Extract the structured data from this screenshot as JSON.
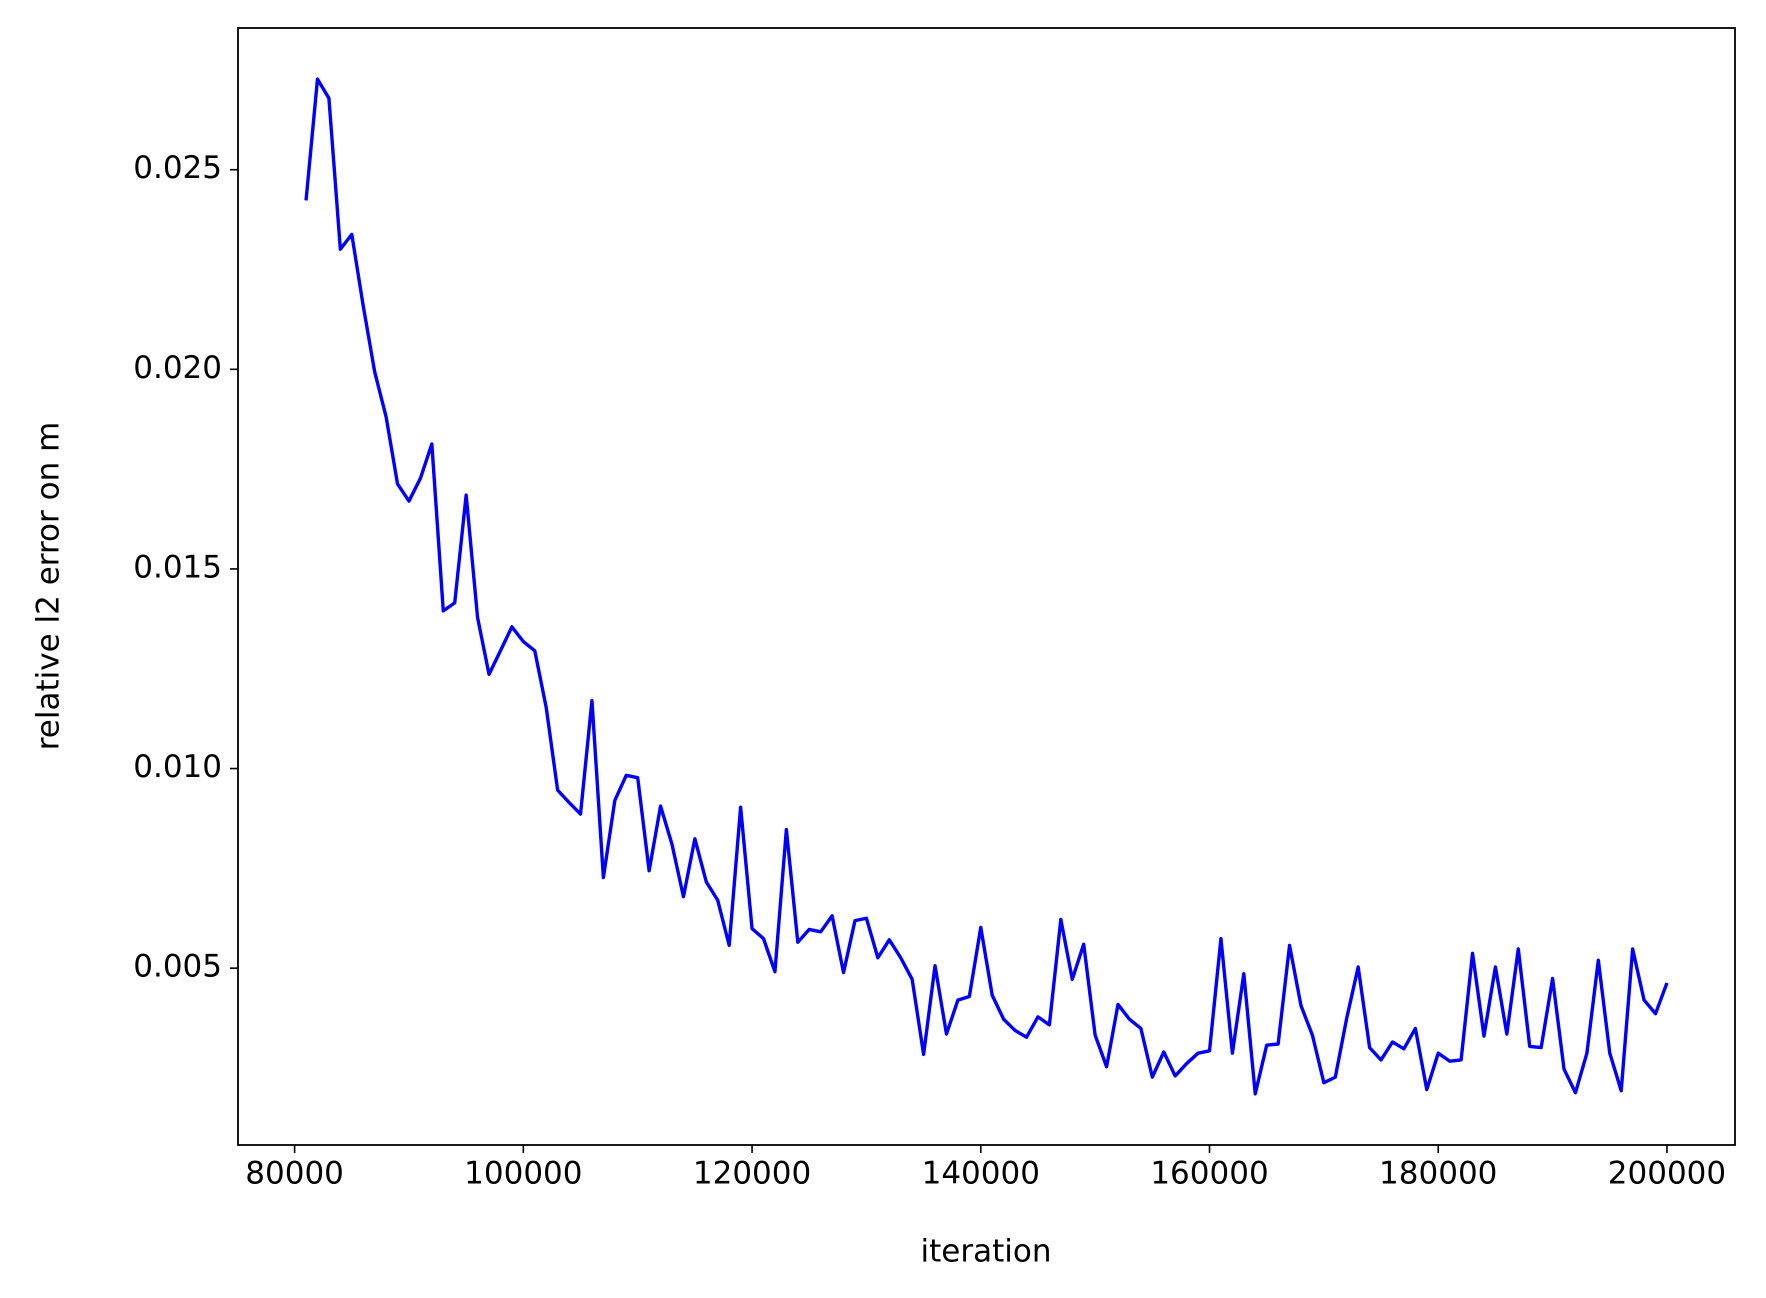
{
  "chart_data": {
    "type": "line",
    "xlabel": "iteration",
    "ylabel": "relative l2 error on m",
    "x": [
      81000,
      82000,
      83000,
      84000,
      85000,
      86000,
      87000,
      88000,
      89000,
      90000,
      91000,
      92000,
      93000,
      94000,
      95000,
      96000,
      97000,
      98000,
      99000,
      100000,
      101000,
      102000,
      103000,
      104000,
      105000,
      106000,
      107000,
      108000,
      109000,
      110000,
      111000,
      112000,
      113000,
      114000,
      115000,
      116000,
      117000,
      118000,
      119000,
      120000,
      121000,
      122000,
      123000,
      124000,
      125000,
      126000,
      127000,
      128000,
      129000,
      130000,
      131000,
      132000,
      133000,
      134000,
      135000,
      136000,
      137000,
      138000,
      139000,
      140000,
      141000,
      142000,
      143000,
      144000,
      145000,
      146000,
      147000,
      148000,
      149000,
      150000,
      151000,
      152000,
      153000,
      154000,
      155000,
      156000,
      157000,
      158000,
      159000,
      160000,
      161000,
      162000,
      163000,
      164000,
      165000,
      166000,
      167000,
      168000,
      169000,
      170000,
      171000,
      172000,
      173000,
      174000,
      175000,
      176000,
      177000,
      178000,
      179000,
      180000,
      181000,
      182000,
      183000,
      184000,
      185000,
      186000,
      187000,
      188000,
      189000,
      190000,
      191000,
      192000,
      193000,
      194000,
      195000,
      196000,
      197000,
      198000,
      199000,
      200000
    ],
    "series": [
      {
        "color": "#0000ff",
        "values": [
          0.02423,
          0.02727,
          0.02679,
          0.02301,
          0.02338,
          0.02159,
          0.01994,
          0.01881,
          0.01713,
          0.0167,
          0.01727,
          0.01813,
          0.01395,
          0.01415,
          0.01685,
          0.01378,
          0.01236,
          0.01295,
          0.01355,
          0.01318,
          0.01295,
          0.01153,
          0.00946,
          0.00915,
          0.00886,
          0.0117,
          0.00727,
          0.0092,
          0.00983,
          0.00977,
          0.00744,
          0.00906,
          0.0081,
          0.00679,
          0.00824,
          0.00716,
          0.0067,
          0.00557,
          0.00903,
          0.00599,
          0.00574,
          0.00491,
          0.00847,
          0.00565,
          0.00597,
          0.00591,
          0.00631,
          0.00489,
          0.00619,
          0.00625,
          0.00526,
          0.00571,
          0.00526,
          0.00472,
          0.00284,
          0.00506,
          0.00335,
          0.0042,
          0.00429,
          0.00602,
          0.00432,
          0.00372,
          0.00344,
          0.00327,
          0.00378,
          0.00358,
          0.00622,
          0.00472,
          0.0056,
          0.00332,
          0.00253,
          0.00409,
          0.00372,
          0.00349,
          0.00227,
          0.0029,
          0.0023,
          0.00261,
          0.00287,
          0.00293,
          0.00574,
          0.00287,
          0.00486,
          0.00185,
          0.00307,
          0.0031,
          0.00557,
          0.00406,
          0.00332,
          0.00213,
          0.00227,
          0.00375,
          0.00503,
          0.00301,
          0.0027,
          0.00315,
          0.00298,
          0.00349,
          0.00196,
          0.00287,
          0.00267,
          0.0027,
          0.00537,
          0.0033,
          0.00503,
          0.00335,
          0.00548,
          0.00304,
          0.00301,
          0.00474,
          0.00247,
          0.00188,
          0.00287,
          0.0052,
          0.00287,
          0.00193,
          0.00548,
          0.0042,
          0.00386,
          0.00463
        ]
      }
    ],
    "xlim": [
      75050,
      205950
    ],
    "ylim": [
      0.00057,
      0.02855
    ],
    "xticks": [
      80000,
      100000,
      120000,
      140000,
      160000,
      180000,
      200000
    ],
    "yticks": [
      0.005,
      {
        "value": 0.01,
        "label": "0.010"
      },
      0.015,
      {
        "value": 0.02,
        "label": "0.020"
      },
      0.025
    ]
  }
}
